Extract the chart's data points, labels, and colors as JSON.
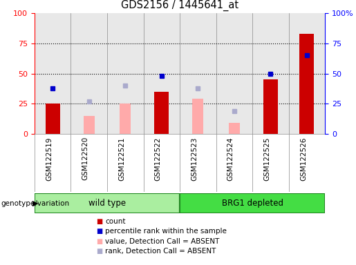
{
  "title": "GDS2156 / 1445641_at",
  "samples": [
    "GSM122519",
    "GSM122520",
    "GSM122521",
    "GSM122522",
    "GSM122523",
    "GSM122524",
    "GSM122525",
    "GSM122526"
  ],
  "count_values": [
    25,
    0,
    0,
    35,
    0,
    0,
    45,
    83
  ],
  "percentile_rank": [
    38,
    null,
    null,
    48,
    null,
    null,
    50,
    65
  ],
  "absent_value": [
    null,
    15,
    25,
    null,
    29,
    9,
    null,
    null
  ],
  "absent_rank": [
    null,
    27,
    40,
    null,
    38,
    19,
    null,
    null
  ],
  "ylim_left": [
    0,
    100
  ],
  "ylim_right": [
    0,
    100
  ],
  "count_color": "#cc0000",
  "percentile_color": "#0000cc",
  "absent_value_color": "#ffaaaa",
  "absent_rank_color": "#aaaacc",
  "plot_bg": "#e8e8e8",
  "wt_color": "#aaeea0",
  "brg_color": "#44dd44",
  "grp_edge_color": "#228822",
  "genotype_label": "genotype/variation",
  "wild_type_label": "wild type",
  "brg1_label": "BRG1 depleted",
  "legend": [
    {
      "label": "count",
      "color": "#cc0000"
    },
    {
      "label": "percentile rank within the sample",
      "color": "#0000cc"
    },
    {
      "label": "value, Detection Call = ABSENT",
      "color": "#ffaaaa"
    },
    {
      "label": "rank, Detection Call = ABSENT",
      "color": "#aaaacc"
    }
  ]
}
